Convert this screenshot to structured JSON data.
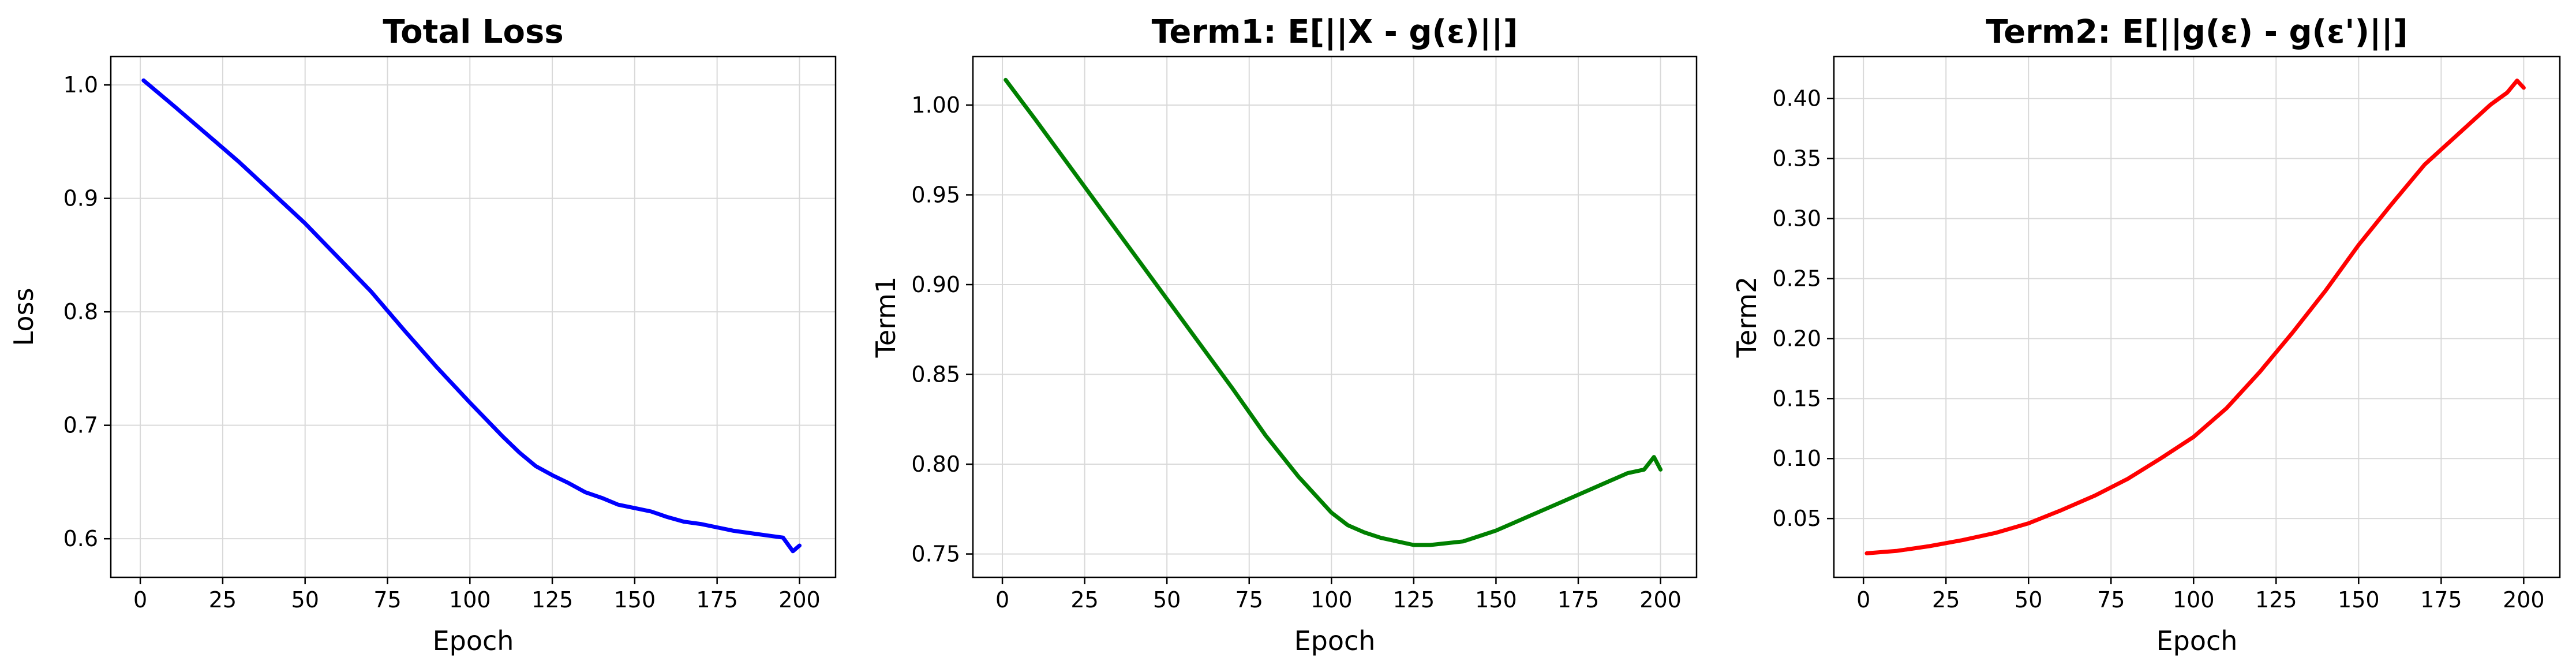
{
  "chart_data": [
    {
      "type": "line",
      "title": "Total Loss",
      "xlabel": "Epoch",
      "ylabel": "Loss",
      "xlim": [
        -8.95,
        210.95
      ],
      "ylim": [
        0.566,
        1.025
      ],
      "xticks": [
        0,
        25,
        50,
        75,
        100,
        125,
        150,
        175,
        200
      ],
      "yticks": [
        0.6,
        0.7,
        0.8,
        0.9,
        1.0
      ],
      "ytick_decimals": 1,
      "grid": true,
      "color": "#0000ff",
      "series": [
        {
          "x": [
            1,
            10,
            20,
            30,
            40,
            50,
            60,
            70,
            80,
            90,
            100,
            110,
            115,
            120,
            125,
            130,
            135,
            140,
            145,
            150,
            155,
            160,
            165,
            170,
            175,
            180,
            185,
            190,
            195,
            198,
            200
          ],
          "values": [
            1.004,
            0.982,
            0.957,
            0.932,
            0.905,
            0.878,
            0.848,
            0.818,
            0.784,
            0.751,
            0.72,
            0.69,
            0.676,
            0.664,
            0.656,
            0.649,
            0.641,
            0.636,
            0.63,
            0.627,
            0.624,
            0.619,
            0.615,
            0.613,
            0.61,
            0.607,
            0.605,
            0.603,
            0.601,
            0.589,
            0.594
          ]
        }
      ]
    },
    {
      "type": "line",
      "title": "Term1: E[||X - g(ε)||]",
      "xlabel": "Epoch",
      "ylabel": "Term1",
      "xlim": [
        -8.95,
        210.95
      ],
      "ylim": [
        0.737,
        1.027
      ],
      "xticks": [
        0,
        25,
        50,
        75,
        100,
        125,
        150,
        175,
        200
      ],
      "yticks": [
        0.75,
        0.8,
        0.85,
        0.9,
        0.95,
        1.0
      ],
      "ytick_decimals": 2,
      "grid": true,
      "color": "#008000",
      "series": [
        {
          "x": [
            1,
            10,
            20,
            30,
            40,
            50,
            60,
            70,
            80,
            90,
            100,
            105,
            110,
            115,
            120,
            125,
            130,
            135,
            140,
            145,
            150,
            155,
            160,
            165,
            170,
            175,
            180,
            185,
            190,
            195,
            198,
            200
          ],
          "values": [
            1.014,
            0.992,
            0.967,
            0.942,
            0.917,
            0.892,
            0.867,
            0.842,
            0.816,
            0.793,
            0.773,
            0.766,
            0.762,
            0.759,
            0.757,
            0.755,
            0.755,
            0.756,
            0.757,
            0.76,
            0.763,
            0.767,
            0.771,
            0.775,
            0.779,
            0.783,
            0.787,
            0.791,
            0.795,
            0.797,
            0.804,
            0.797
          ]
        }
      ]
    },
    {
      "type": "line",
      "title": "Term2: E[||g(ε) - g(ε')||]",
      "xlabel": "Epoch",
      "ylabel": "Term2",
      "xlim": [
        -8.95,
        210.95
      ],
      "ylim": [
        0.001,
        0.435
      ],
      "xticks": [
        0,
        25,
        50,
        75,
        100,
        125,
        150,
        175,
        200
      ],
      "yticks": [
        0.05,
        0.1,
        0.15,
        0.2,
        0.25,
        0.3,
        0.35,
        0.4
      ],
      "ytick_decimals": 2,
      "grid": true,
      "color": "#ff0000",
      "series": [
        {
          "x": [
            1,
            10,
            20,
            30,
            40,
            50,
            60,
            70,
            80,
            90,
            100,
            110,
            120,
            130,
            140,
            150,
            160,
            170,
            180,
            190,
            195,
            198,
            200
          ],
          "values": [
            0.021,
            0.023,
            0.027,
            0.032,
            0.038,
            0.046,
            0.057,
            0.069,
            0.083,
            0.1,
            0.118,
            0.142,
            0.172,
            0.205,
            0.24,
            0.278,
            0.312,
            0.345,
            0.37,
            0.395,
            0.405,
            0.415,
            0.409
          ]
        }
      ]
    }
  ]
}
